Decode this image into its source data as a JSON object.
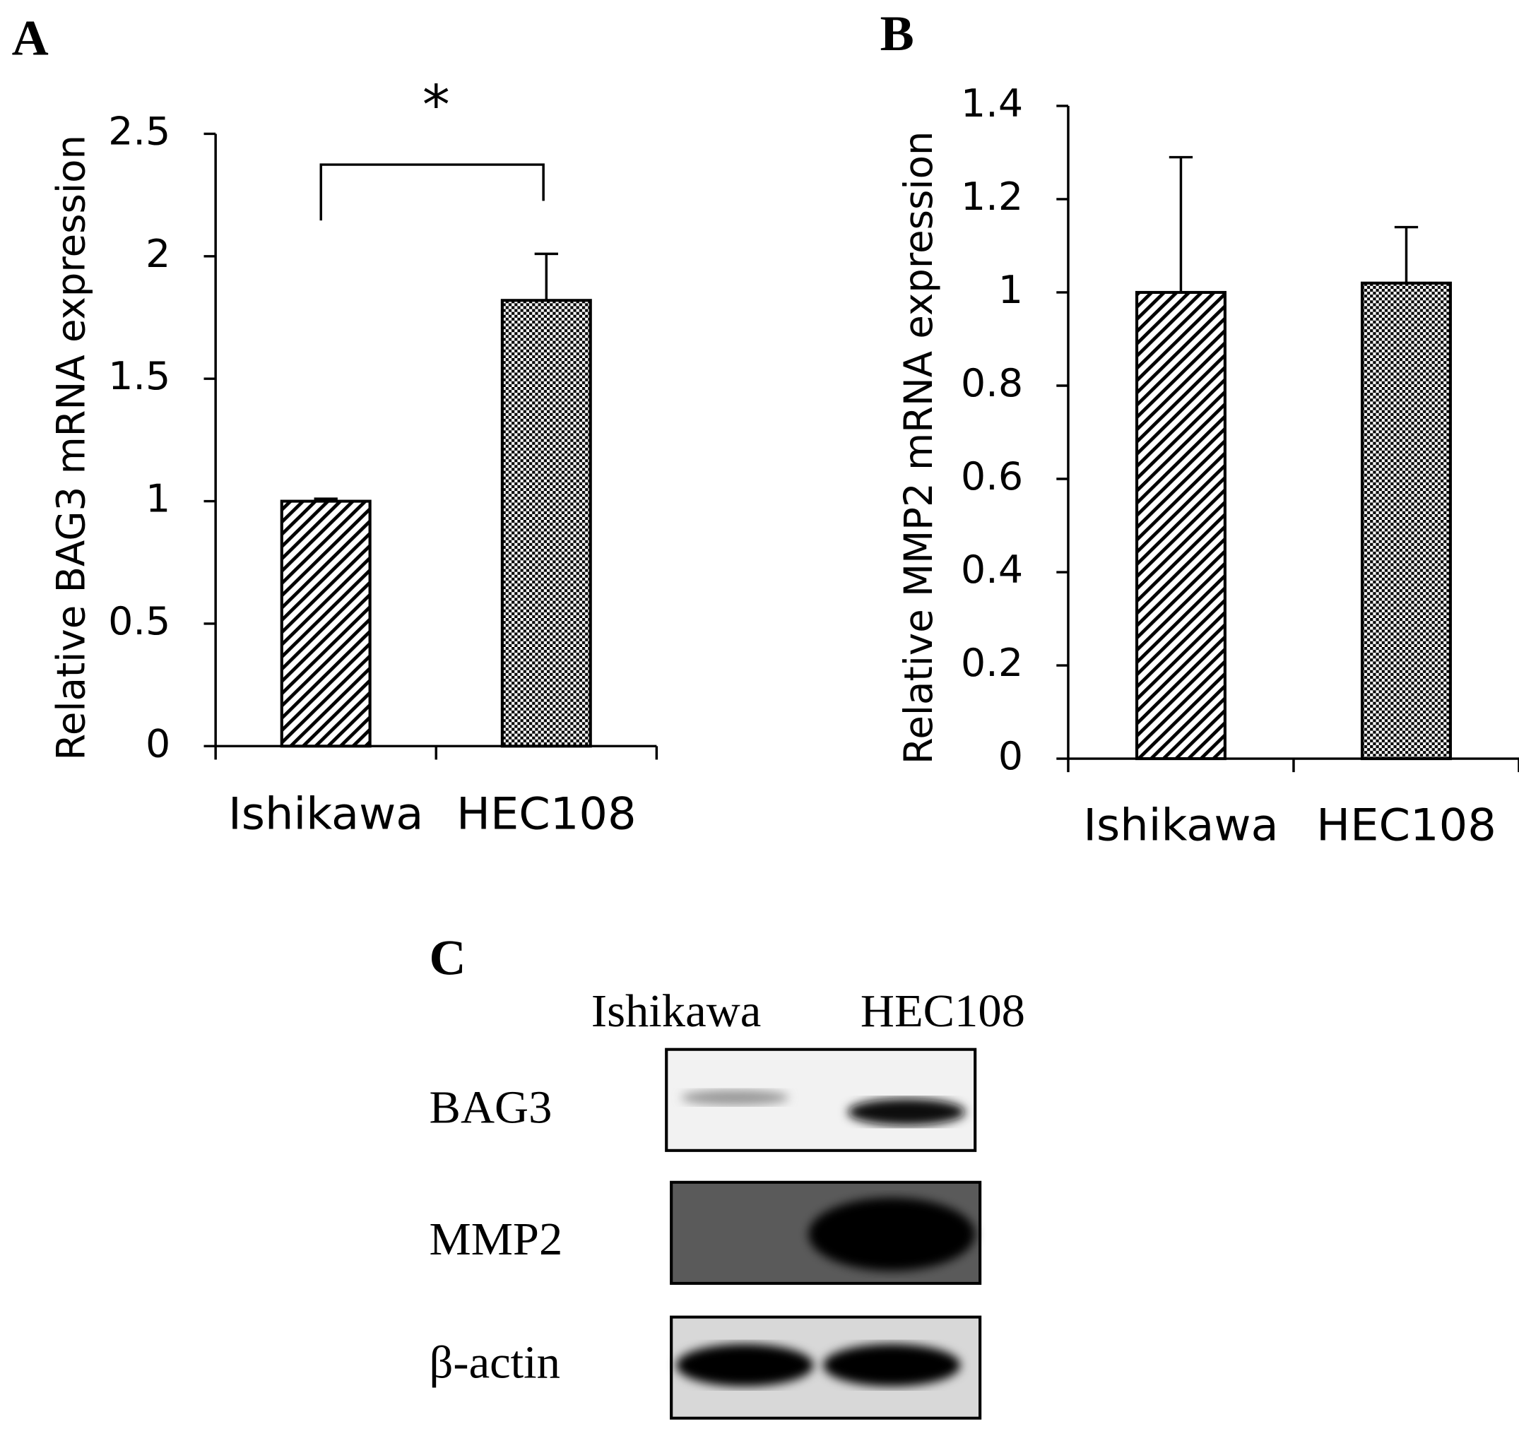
{
  "chart_data": [
    {
      "type": "bar",
      "panel": "A",
      "ylabel": "Relative BAG3 mRNA expression",
      "categories": [
        "Ishikawa",
        "HEC108"
      ],
      "values": [
        1.0,
        1.82
      ],
      "errors": [
        0.01,
        0.19
      ],
      "patterns": [
        "diagonal",
        "checker"
      ],
      "color": "#000000",
      "ylim": [
        0,
        2.5
      ],
      "yticks": [
        0,
        0.5,
        1,
        1.5,
        2,
        2.5
      ],
      "annotation": "*"
    },
    {
      "type": "bar",
      "panel": "B",
      "ylabel": "Relative MMP2 mRNA expression",
      "categories": [
        "Ishikawa",
        "HEC108"
      ],
      "values": [
        1.0,
        1.02
      ],
      "errors": [
        0.29,
        0.12
      ],
      "patterns": [
        "diagonal",
        "checker"
      ],
      "color": "#000000",
      "ylim": [
        0,
        1.4
      ],
      "yticks": [
        0,
        0.2,
        0.4,
        0.6,
        0.8,
        1,
        1.2,
        1.4
      ]
    }
  ],
  "blot": {
    "panel": "C",
    "lanes": [
      "Ishikawa",
      "HEC108"
    ],
    "rows": [
      "BAG3",
      "MMP2",
      "β-actin"
    ]
  }
}
